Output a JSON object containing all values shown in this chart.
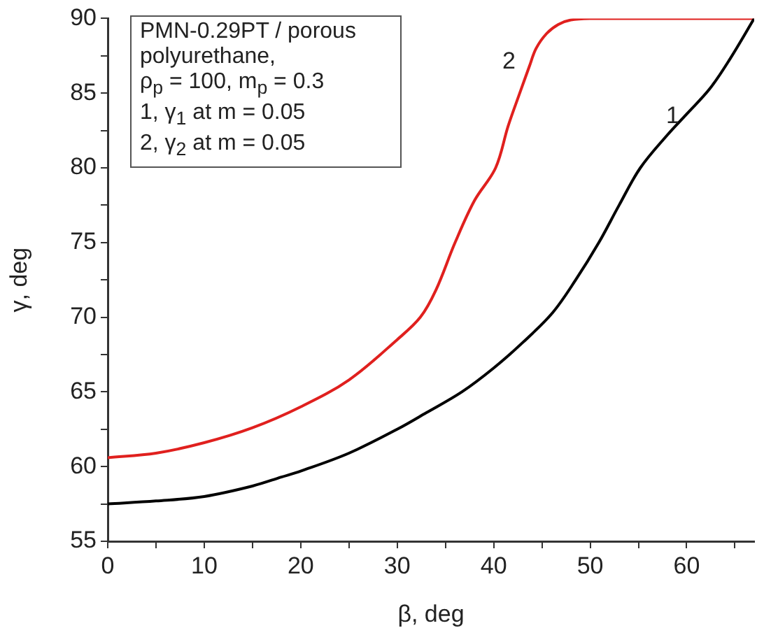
{
  "chart_data": {
    "type": "line",
    "xlabel": "β, deg",
    "ylabel": "γ, deg",
    "xlim": [
      0,
      67
    ],
    "xticks": [
      0,
      {
        "value": 5,
        "label": null
      },
      10,
      {
        "value": 15,
        "label": null
      },
      20,
      {
        "value": 25,
        "label": null
      },
      30,
      {
        "value": 35,
        "label": null
      },
      40,
      {
        "value": 45,
        "label": null
      },
      50,
      {
        "value": 55,
        "label": null
      },
      60,
      {
        "value": 65,
        "label": null
      }
    ],
    "ylim": [
      55,
      90
    ],
    "yticks": [
      55,
      {
        "value": 57.5,
        "label": null
      },
      60,
      {
        "value": 62.5,
        "label": null
      },
      65,
      {
        "value": 67.5,
        "label": null
      },
      70,
      {
        "value": 72.5,
        "label": null
      },
      75,
      {
        "value": 77.5,
        "label": null
      },
      80,
      {
        "value": 82.5,
        "label": null
      },
      85,
      {
        "value": 87.5,
        "label": null
      },
      90
    ],
    "series": [
      {
        "color": "#000000",
        "x": [
          0,
          5,
          10,
          15,
          18,
          20,
          25,
          30,
          33,
          36.7,
          40,
          43,
          46.1,
          48.5,
          50.9,
          53,
          55.2,
          58,
          60,
          62.4,
          64.5,
          67
        ],
        "values": [
          57.5,
          57.7,
          58.0,
          58.7,
          59.3,
          59.7,
          60.9,
          62.5,
          63.6,
          65,
          66.6,
          68.3,
          70.3,
          72.5,
          75,
          77.5,
          80,
          82.2,
          83.6,
          85.3,
          87.3,
          90
        ]
      },
      {
        "color": "#e0201e",
        "x": [
          0,
          5,
          10,
          15,
          20,
          25,
          30,
          32.4,
          34,
          36,
          38,
          40.2,
          41.5,
          42.7,
          43.7,
          44.4,
          45.5,
          46.7,
          48,
          50,
          55,
          60,
          67
        ],
        "values": [
          60.6,
          60.9,
          61.6,
          62.6,
          64.0,
          65.8,
          68.5,
          70,
          71.8,
          75,
          77.8,
          80,
          82.8,
          85,
          86.8,
          88,
          89.0,
          89.6,
          89.9,
          90,
          90,
          90,
          90
        ]
      }
    ],
    "annotations": [
      "PMN-0.29PT / porous polyurethane,",
      "ρ$_{p}$ = 100, m$_{p}$ = 0.3",
      "1, γ$_{1}$ at m = 0.05",
      "2, γ$_{2}$ at m = 0.05",
      "1",
      "2"
    ],
    "grid": false,
    "legend": false,
    "marker": "none",
    "line_style": "solid"
  }
}
